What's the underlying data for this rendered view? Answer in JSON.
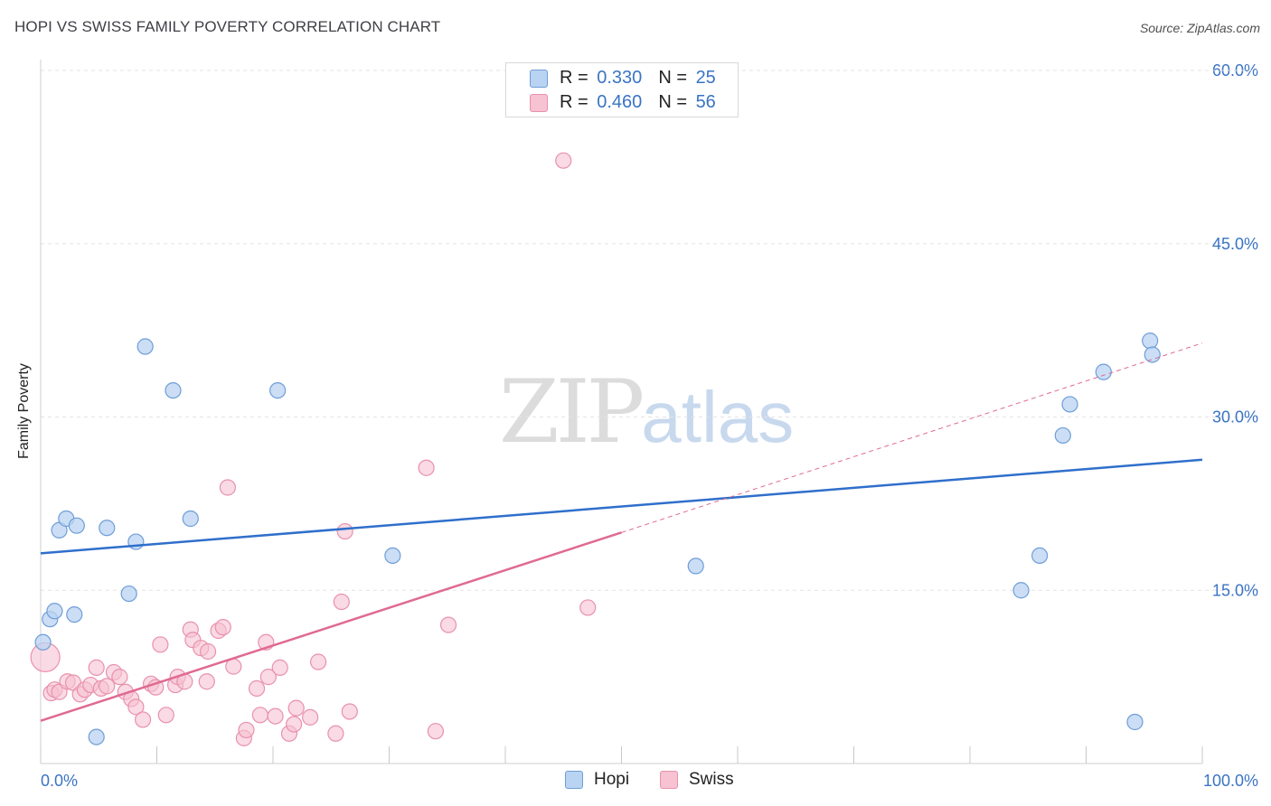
{
  "title": "HOPI VS SWISS FAMILY POVERTY CORRELATION CHART",
  "source": "Source: ZipAtlas.com",
  "watermark": {
    "zip": "ZIP",
    "atlas": "atlas"
  },
  "legend": {
    "r_label": "R =",
    "n_label": "N =",
    "entries": [
      {
        "series": "Hopi",
        "r": "0.330",
        "n": "25"
      },
      {
        "series": "Swiss",
        "r": "0.460",
        "n": "56"
      }
    ]
  },
  "colors": {
    "hopi_fill": "#b9d3f2",
    "hopi_stroke": "#6e9ed8",
    "hopi_line": "#2f6fcb",
    "swiss_fill": "#f7c2d2",
    "swiss_stroke": "#e891ad",
    "swiss_line": "#e06a92",
    "grid": "#e3e3e3",
    "tick_label": "#3a74c4"
  },
  "chart_data": {
    "type": "scatter",
    "title": "HOPI VS SWISS FAMILY POVERTY CORRELATION CHART",
    "xlabel": "",
    "ylabel": "Family Poverty",
    "xlim": [
      0,
      100
    ],
    "ylim": [
      0,
      60
    ],
    "x_tick_labels": [
      "0.0%",
      "100.0%"
    ],
    "y_ticks": [
      {
        "value": 15,
        "label": "15.0%"
      },
      {
        "value": 30,
        "label": "30.0%"
      },
      {
        "value": 45,
        "label": "45.0%"
      },
      {
        "value": 60,
        "label": "60.0%"
      }
    ],
    "grid": true,
    "legend_position": "top-center",
    "series": [
      {
        "name": "Hopi",
        "points": [
          [
            0.2,
            10.5
          ],
          [
            0.8,
            12.5
          ],
          [
            1.2,
            13.2
          ],
          [
            1.6,
            20.2
          ],
          [
            2.2,
            21.2
          ],
          [
            2.9,
            12.9
          ],
          [
            3.1,
            20.6
          ],
          [
            4.8,
            2.3
          ],
          [
            5.7,
            20.4
          ],
          [
            7.6,
            14.7
          ],
          [
            8.2,
            19.2
          ],
          [
            9.0,
            36.1
          ],
          [
            11.4,
            32.3
          ],
          [
            12.9,
            21.2
          ],
          [
            20.4,
            32.3
          ],
          [
            30.3,
            18.0
          ],
          [
            56.4,
            17.1
          ],
          [
            84.4,
            15.0
          ],
          [
            86.0,
            18.0
          ],
          [
            88.0,
            28.4
          ],
          [
            88.6,
            31.1
          ],
          [
            91.5,
            33.9
          ],
          [
            94.2,
            3.6
          ],
          [
            95.5,
            36.6
          ],
          [
            95.7,
            35.4
          ]
        ],
        "trend": {
          "x": [
            0,
            100
          ],
          "y": [
            18.2,
            26.3
          ],
          "style": "solid"
        }
      },
      {
        "name": "Swiss",
        "points": [
          [
            0.4,
            9.2
          ],
          [
            0.9,
            6.1
          ],
          [
            1.2,
            6.4
          ],
          [
            1.6,
            6.2
          ],
          [
            2.3,
            7.1
          ],
          [
            2.8,
            7.0
          ],
          [
            3.4,
            6.0
          ],
          [
            3.8,
            6.4
          ],
          [
            4.3,
            6.8
          ],
          [
            4.8,
            8.3
          ],
          [
            5.2,
            6.5
          ],
          [
            5.7,
            6.7
          ],
          [
            6.3,
            7.9
          ],
          [
            6.8,
            7.5
          ],
          [
            7.3,
            6.2
          ],
          [
            7.8,
            5.6
          ],
          [
            8.2,
            4.9
          ],
          [
            8.8,
            3.8
          ],
          [
            9.5,
            6.9
          ],
          [
            9.9,
            6.6
          ],
          [
            10.3,
            10.3
          ],
          [
            10.8,
            4.2
          ],
          [
            11.6,
            6.8
          ],
          [
            11.8,
            7.5
          ],
          [
            12.4,
            7.1
          ],
          [
            12.9,
            11.6
          ],
          [
            13.1,
            10.7
          ],
          [
            13.8,
            10.0
          ],
          [
            14.3,
            7.1
          ],
          [
            14.4,
            9.7
          ],
          [
            15.3,
            11.5
          ],
          [
            15.7,
            11.8
          ],
          [
            16.1,
            23.9
          ],
          [
            16.6,
            8.4
          ],
          [
            17.5,
            2.2
          ],
          [
            17.7,
            2.9
          ],
          [
            18.6,
            6.5
          ],
          [
            18.9,
            4.2
          ],
          [
            19.4,
            10.5
          ],
          [
            19.6,
            7.5
          ],
          [
            20.2,
            4.1
          ],
          [
            20.6,
            8.3
          ],
          [
            21.4,
            2.6
          ],
          [
            21.8,
            3.4
          ],
          [
            22.0,
            4.8
          ],
          [
            23.2,
            4.0
          ],
          [
            23.9,
            8.8
          ],
          [
            25.4,
            2.6
          ],
          [
            25.9,
            14.0
          ],
          [
            26.2,
            20.1
          ],
          [
            26.6,
            4.5
          ],
          [
            33.2,
            25.6
          ],
          [
            34.0,
            2.8
          ],
          [
            35.1,
            12.0
          ],
          [
            45.0,
            52.2
          ],
          [
            47.1,
            13.5
          ]
        ],
        "trend": {
          "x": [
            0,
            50
          ],
          "y": [
            3.7,
            20.0
          ],
          "style": "solid"
        },
        "trend_extension": {
          "x": [
            50,
            100
          ],
          "y": [
            20.0,
            36.4
          ],
          "style": "dashed"
        }
      }
    ]
  },
  "bottom_legend": [
    {
      "label": "Hopi"
    },
    {
      "label": "Swiss"
    }
  ]
}
